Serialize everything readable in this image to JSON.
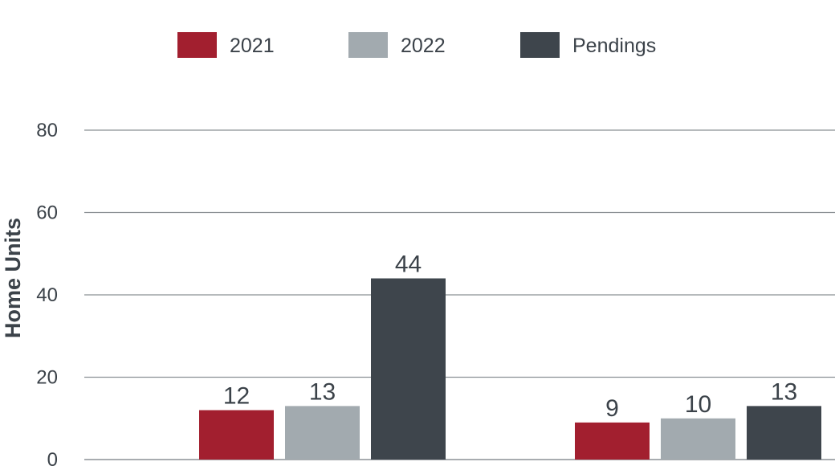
{
  "chart_data": {
    "type": "bar",
    "title": "",
    "xlabel": "",
    "ylabel": "Home Units",
    "categories": [
      "",
      ""
    ],
    "series": [
      {
        "name": "2021",
        "values": [
          12,
          9
        ],
        "color": "#a21f2f"
      },
      {
        "name": "2022",
        "values": [
          13,
          10
        ],
        "color": "#a2aaaf"
      },
      {
        "name": "Pendings",
        "values": [
          44,
          13
        ],
        "color": "#3e454c"
      }
    ],
    "ylim": [
      0,
      80
    ],
    "yticks": [
      0,
      20,
      40,
      60,
      80
    ],
    "ytick_labels": [
      "0",
      "20",
      "40",
      "60",
      "80"
    ],
    "grid": true,
    "legend_position": "top"
  }
}
